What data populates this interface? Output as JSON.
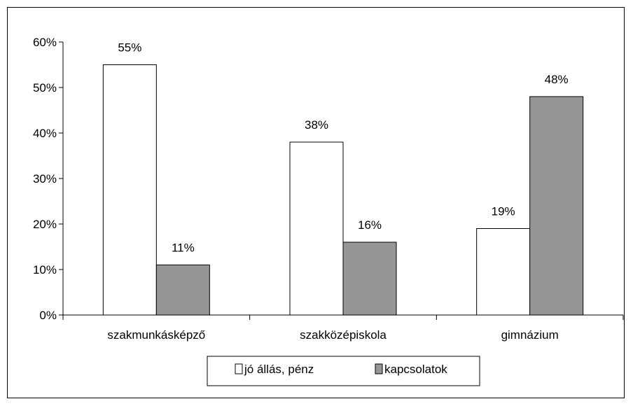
{
  "chart_data": {
    "type": "bar",
    "categories": [
      "szakmunkásképző",
      "szakközépiskola",
      "gimnázium"
    ],
    "series": [
      {
        "name": "jó állás, pénz",
        "values": [
          55,
          38,
          19
        ],
        "color": "#ffffff",
        "labels": [
          "55%",
          "38%",
          "19%"
        ]
      },
      {
        "name": "kapcsolatok",
        "values": [
          11,
          16,
          48
        ],
        "color": "#969696",
        "labels": [
          "11%",
          "16%",
          "48%"
        ]
      }
    ],
    "y_ticks": [
      "0%",
      "10%",
      "20%",
      "30%",
      "40%",
      "50%",
      "60%"
    ],
    "ylim": [
      0,
      60
    ],
    "title": "",
    "xlabel": "",
    "ylabel": "",
    "grid": false,
    "legend_position": "bottom"
  }
}
